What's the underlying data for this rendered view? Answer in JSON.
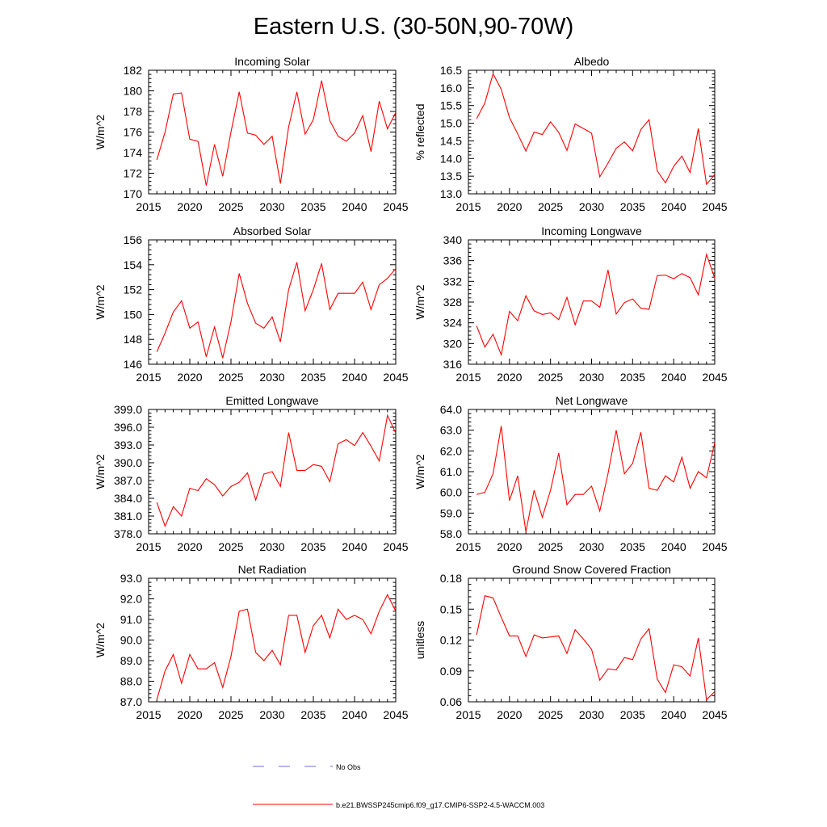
{
  "figure": {
    "title": "Eastern U.S. (30-50N,90-70W)",
    "legend": {
      "obs_label": "No Obs",
      "obs_color": "#6b6bd6",
      "model_label": "b.e21.BWSSP245cmip6.f09_g17.CMIP6-SSP2-4.5-WACCM.003",
      "model_color": "#ff0000"
    }
  },
  "chart_data": [
    {
      "type": "line",
      "title": "Incoming Solar",
      "ylabel": "W/m^2",
      "xlim": [
        2015,
        2045
      ],
      "ylim": [
        170,
        182
      ],
      "xticks": [
        "2015",
        "2020",
        "2025",
        "2030",
        "2035",
        "2040",
        "2045"
      ],
      "yticks": [
        "170",
        "172",
        "174",
        "176",
        "178",
        "180",
        "182"
      ],
      "series": [
        {
          "name": "b.e21.BWSSP245cmip6.f09_g17.CMIP6-SSP2-4.5-WACCM.003",
          "color": "#ff0000",
          "x": [
            2016,
            2017,
            2018,
            2019,
            2020,
            2021,
            2022,
            2023,
            2024,
            2025,
            2026,
            2027,
            2028,
            2029,
            2030,
            2031,
            2032,
            2033,
            2034,
            2035,
            2036,
            2037,
            2038,
            2039,
            2040,
            2041,
            2042,
            2043,
            2044,
            2045
          ],
          "values": [
            173.3,
            176.0,
            179.7,
            179.8,
            175.3,
            175.1,
            170.8,
            174.8,
            171.7,
            176.0,
            179.9,
            175.9,
            175.7,
            174.8,
            175.6,
            171.0,
            176.5,
            179.9,
            175.8,
            177.2,
            181.0,
            177.1,
            175.6,
            175.1,
            175.9,
            177.6,
            174.1,
            179.0,
            176.3,
            177.9
          ]
        }
      ]
    },
    {
      "type": "line",
      "title": "Albedo",
      "ylabel": "% reflected",
      "xlim": [
        2015,
        2045
      ],
      "ylim": [
        13.0,
        16.5
      ],
      "xticks": [
        "2015",
        "2020",
        "2025",
        "2030",
        "2035",
        "2040",
        "2045"
      ],
      "yticks": [
        "13.0",
        "13.5",
        "14.0",
        "14.5",
        "15.0",
        "15.5",
        "16.0",
        "16.5"
      ],
      "series": [
        {
          "name": "b.e21.BWSSP245cmip6.f09_g17.CMIP6-SSP2-4.5-WACCM.003",
          "color": "#ff0000",
          "x": [
            2016,
            2017,
            2018,
            2019,
            2020,
            2021,
            2022,
            2023,
            2024,
            2025,
            2026,
            2027,
            2028,
            2029,
            2030,
            2031,
            2032,
            2033,
            2034,
            2035,
            2036,
            2037,
            2038,
            2039,
            2040,
            2041,
            2042,
            2043,
            2044,
            2045
          ],
          "values": [
            15.13,
            15.57,
            16.4,
            15.96,
            15.16,
            14.7,
            14.21,
            14.75,
            14.68,
            15.04,
            14.74,
            14.23,
            14.98,
            14.85,
            14.72,
            13.48,
            13.87,
            14.29,
            14.47,
            14.22,
            14.82,
            15.1,
            13.65,
            13.31,
            13.78,
            14.07,
            13.6,
            14.85,
            13.27,
            13.55
          ]
        }
      ]
    },
    {
      "type": "line",
      "title": "Absorbed Solar",
      "ylabel": "W/m^2",
      "xlim": [
        2015,
        2045
      ],
      "ylim": [
        146,
        156
      ],
      "xticks": [
        "2015",
        "2020",
        "2025",
        "2030",
        "2035",
        "2040",
        "2045"
      ],
      "yticks": [
        "146",
        "148",
        "150",
        "152",
        "154",
        "156"
      ],
      "series": [
        {
          "name": "b.e21.BWSSP245cmip6.f09_g17.CMIP6-SSP2-4.5-WACCM.003",
          "color": "#ff0000",
          "x": [
            2016,
            2017,
            2018,
            2019,
            2020,
            2021,
            2022,
            2023,
            2024,
            2025,
            2026,
            2027,
            2028,
            2029,
            2030,
            2031,
            2032,
            2033,
            2034,
            2035,
            2036,
            2037,
            2038,
            2039,
            2040,
            2041,
            2042,
            2043,
            2044,
            2045
          ],
          "values": [
            147.0,
            148.5,
            150.2,
            151.1,
            148.9,
            149.4,
            146.6,
            149.0,
            146.5,
            149.4,
            153.3,
            150.9,
            149.3,
            148.9,
            149.8,
            147.8,
            152.0,
            154.2,
            150.3,
            152.0,
            154.1,
            150.4,
            151.7,
            151.7,
            151.7,
            152.6,
            150.4,
            152.4,
            152.9,
            153.7
          ]
        }
      ]
    },
    {
      "type": "line",
      "title": "Incoming Longwave",
      "ylabel": "W/m^2",
      "xlim": [
        2015,
        2045
      ],
      "ylim": [
        316,
        340
      ],
      "xticks": [
        "2015",
        "2020",
        "2025",
        "2030",
        "2035",
        "2040",
        "2045"
      ],
      "yticks": [
        "316",
        "320",
        "324",
        "328",
        "332",
        "336",
        "340"
      ],
      "series": [
        {
          "name": "b.e21.BWSSP245cmip6.f09_g17.CMIP6-SSP2-4.5-WACCM.003",
          "color": "#ff0000",
          "x": [
            2016,
            2017,
            2018,
            2019,
            2020,
            2021,
            2022,
            2023,
            2024,
            2025,
            2026,
            2027,
            2028,
            2029,
            2030,
            2031,
            2032,
            2033,
            2034,
            2035,
            2036,
            2037,
            2038,
            2039,
            2040,
            2041,
            2042,
            2043,
            2044,
            2045
          ],
          "values": [
            323.4,
            319.3,
            321.8,
            317.8,
            326.2,
            324.4,
            329.2,
            326.3,
            325.6,
            325.9,
            324.6,
            328.9,
            323.6,
            328.2,
            328.2,
            327.0,
            334.2,
            325.7,
            327.9,
            328.6,
            326.8,
            326.6,
            333.1,
            333.2,
            332.5,
            333.5,
            332.7,
            329.4,
            337.2,
            332.6
          ]
        }
      ]
    },
    {
      "type": "line",
      "title": "Emitted Longwave",
      "ylabel": "W/m^2",
      "xlim": [
        2015,
        2045
      ],
      "ylim": [
        378.0,
        399.0
      ],
      "xticks": [
        "2015",
        "2020",
        "2025",
        "2030",
        "2035",
        "2040",
        "2045"
      ],
      "yticks": [
        "378.0",
        "381.0",
        "384.0",
        "387.0",
        "390.0",
        "393.0",
        "396.0",
        "399.0"
      ],
      "series": [
        {
          "name": "b.e21.BWSSP245cmip6.f09_g17.CMIP6-SSP2-4.5-WACCM.003",
          "color": "#ff0000",
          "x": [
            2016,
            2017,
            2018,
            2019,
            2020,
            2021,
            2022,
            2023,
            2024,
            2025,
            2026,
            2027,
            2028,
            2029,
            2030,
            2031,
            2032,
            2033,
            2034,
            2035,
            2036,
            2037,
            2038,
            2039,
            2040,
            2041,
            2042,
            2043,
            2044,
            2045
          ],
          "values": [
            383.3,
            379.3,
            382.6,
            381.0,
            385.7,
            385.3,
            387.3,
            386.3,
            384.4,
            386.0,
            386.7,
            388.3,
            383.7,
            388.1,
            388.5,
            386.0,
            395.1,
            388.7,
            388.7,
            389.7,
            389.4,
            386.8,
            393.2,
            393.9,
            392.9,
            395.1,
            392.8,
            390.3,
            398.0,
            395.0
          ]
        }
      ]
    },
    {
      "type": "line",
      "title": "Net Longwave",
      "ylabel": "W/m^2",
      "xlim": [
        2015,
        2045
      ],
      "ylim": [
        58.0,
        64.0
      ],
      "xticks": [
        "2015",
        "2020",
        "2025",
        "2030",
        "2035",
        "2040",
        "2045"
      ],
      "yticks": [
        "58.0",
        "59.0",
        "60.0",
        "61.0",
        "62.0",
        "63.0",
        "64.0"
      ],
      "series": [
        {
          "name": "b.e21.BWSSP245cmip6.f09_g17.CMIP6-SSP2-4.5-WACCM.003",
          "color": "#ff0000",
          "x": [
            2016,
            2017,
            2018,
            2019,
            2020,
            2021,
            2022,
            2023,
            2024,
            2025,
            2026,
            2027,
            2028,
            2029,
            2030,
            2031,
            2032,
            2033,
            2034,
            2035,
            2036,
            2037,
            2038,
            2039,
            2040,
            2041,
            2042,
            2043,
            2044,
            2045
          ],
          "values": [
            59.9,
            60.0,
            60.9,
            63.2,
            59.6,
            60.8,
            58.1,
            60.1,
            58.8,
            60.1,
            61.9,
            59.4,
            59.9,
            59.9,
            60.3,
            59.1,
            60.9,
            63.0,
            60.9,
            61.4,
            62.9,
            60.2,
            60.1,
            60.8,
            60.5,
            61.7,
            60.2,
            61.0,
            60.7,
            62.4
          ]
        }
      ]
    },
    {
      "type": "line",
      "title": "Net Radiation",
      "ylabel": "W/m^2",
      "xlim": [
        2015,
        2045
      ],
      "ylim": [
        87.0,
        93.0
      ],
      "xticks": [
        "2015",
        "2020",
        "2025",
        "2030",
        "2035",
        "2040",
        "2045"
      ],
      "yticks": [
        "87.0",
        "88.0",
        "89.0",
        "90.0",
        "91.0",
        "92.0",
        "93.0"
      ],
      "series": [
        {
          "name": "b.e21.BWSSP245cmip6.f09_g17.CMIP6-SSP2-4.5-WACCM.003",
          "color": "#ff0000",
          "x": [
            2016,
            2017,
            2018,
            2019,
            2020,
            2021,
            2022,
            2023,
            2024,
            2025,
            2026,
            2027,
            2028,
            2029,
            2030,
            2031,
            2032,
            2033,
            2034,
            2035,
            2036,
            2037,
            2038,
            2039,
            2040,
            2041,
            2042,
            2043,
            2044,
            2045
          ],
          "values": [
            87.1,
            88.5,
            89.3,
            87.9,
            89.3,
            88.6,
            88.6,
            88.9,
            87.7,
            89.2,
            91.4,
            91.5,
            89.4,
            89.0,
            89.5,
            88.8,
            91.2,
            91.2,
            89.4,
            90.7,
            91.2,
            90.1,
            91.5,
            91.0,
            91.2,
            91.0,
            90.3,
            91.4,
            92.2,
            91.4
          ]
        }
      ]
    },
    {
      "type": "line",
      "title": "Ground Snow Covered Fraction",
      "ylabel": "unitless",
      "xlim": [
        2015,
        2045
      ],
      "ylim": [
        0.06,
        0.18
      ],
      "xticks": [
        "2015",
        "2020",
        "2025",
        "2030",
        "2035",
        "2040",
        "2045"
      ],
      "yticks": [
        "0.06",
        "0.09",
        "0.12",
        "0.15",
        "0.18"
      ],
      "series": [
        {
          "name": "b.e21.BWSSP245cmip6.f09_g17.CMIP6-SSP2-4.5-WACCM.003",
          "color": "#ff0000",
          "x": [
            2016,
            2017,
            2018,
            2019,
            2020,
            2021,
            2022,
            2023,
            2024,
            2025,
            2026,
            2027,
            2028,
            2029,
            2030,
            2031,
            2032,
            2033,
            2034,
            2035,
            2036,
            2037,
            2038,
            2039,
            2040,
            2041,
            2042,
            2043,
            2044,
            2045
          ],
          "values": [
            0.125,
            0.163,
            0.161,
            0.142,
            0.124,
            0.124,
            0.104,
            0.125,
            0.122,
            0.123,
            0.124,
            0.107,
            0.13,
            0.121,
            0.111,
            0.081,
            0.092,
            0.091,
            0.103,
            0.101,
            0.121,
            0.131,
            0.082,
            0.069,
            0.096,
            0.094,
            0.085,
            0.122,
            0.062,
            0.07
          ]
        }
      ]
    }
  ]
}
